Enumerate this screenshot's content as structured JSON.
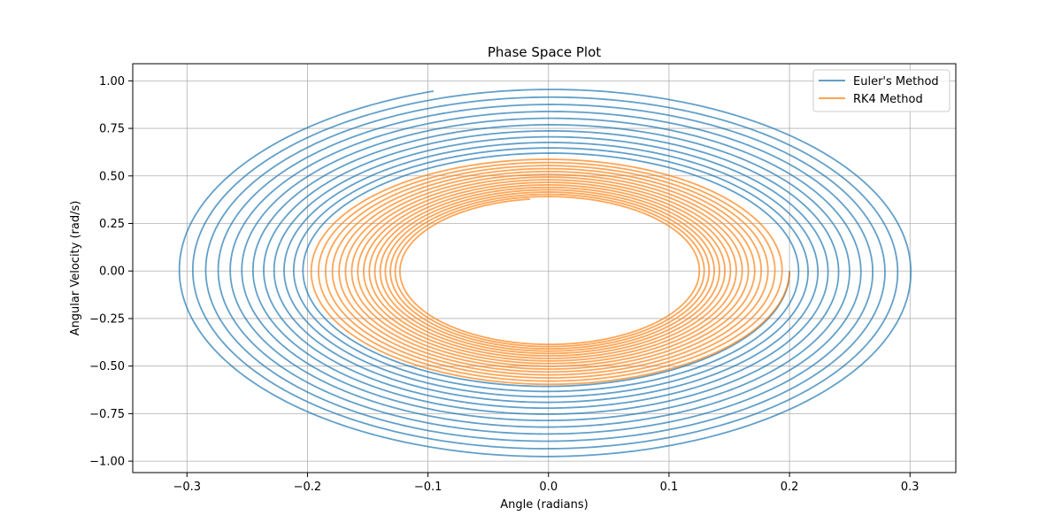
{
  "chart_data": {
    "type": "line",
    "title": "Phase Space Plot",
    "xlabel": "Angle (radians)",
    "ylabel": "Angular Velocity (rad/s)",
    "xlim": [
      -0.345,
      0.338
    ],
    "ylim": [
      -1.06,
      1.09
    ],
    "xticks": [
      -0.3,
      -0.2,
      -0.1,
      0.0,
      0.1,
      0.2,
      0.3
    ],
    "yticks": [
      -1.0,
      -0.75,
      -0.5,
      -0.25,
      0.0,
      0.25,
      0.5,
      0.75,
      1.0
    ],
    "xtick_labels": [
      "−0.3",
      "−0.2",
      "−0.1",
      "0.0",
      "0.1",
      "0.2",
      "0.3"
    ],
    "ytick_labels": [
      "−1.00",
      "−0.75",
      "−0.50",
      "−0.25",
      "0.00",
      "0.25",
      "0.50",
      "0.75",
      "1.00"
    ],
    "grid": true,
    "legend": {
      "placement": "top-right"
    },
    "series": [
      {
        "name": "Euler's Method",
        "color": "#1f77b4",
        "opacity": 0.7,
        "spiral": {
          "a_start": 0.2,
          "a_end": 0.3086,
          "b_start": 0.6,
          "b_end": 0.9946,
          "turns": 11.7,
          "start_angle_deg": 0
        }
      },
      {
        "name": "RK4 Method",
        "color": "#ff7f0e",
        "opacity": 0.7,
        "spiral": {
          "a_start": 0.2,
          "a_end": 0.1224,
          "b_start": 0.6,
          "b_end": 0.3808,
          "turns": 15.73,
          "start_angle_deg": 0
        }
      }
    ]
  }
}
